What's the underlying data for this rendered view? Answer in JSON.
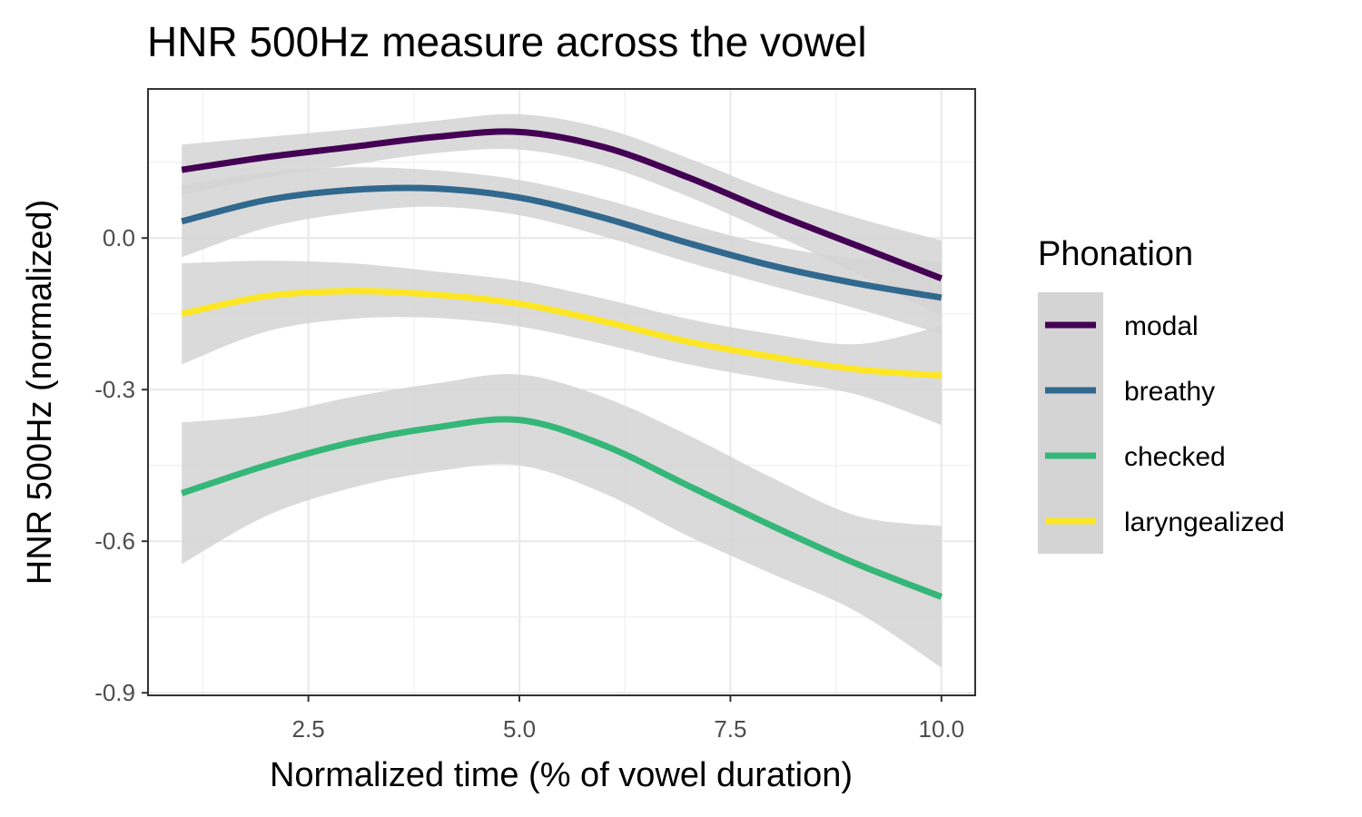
{
  "chart_data": {
    "type": "line",
    "title": "HNR 500Hz measure across the vowel",
    "xlabel": "Normalized time (% of vowel duration)",
    "ylabel": "HNR 500Hz (normalized)",
    "xlim": [
      0.6,
      10.4
    ],
    "ylim": [
      -0.905,
      0.295
    ],
    "x_ticks": [
      2.5,
      5.0,
      7.5,
      10.0
    ],
    "x_tick_labels": [
      "2.5",
      "5.0",
      "7.5",
      "10.0"
    ],
    "y_ticks": [
      0.0,
      -0.3,
      -0.6,
      -0.9
    ],
    "y_tick_labels": [
      "0.0",
      "-0.3",
      "-0.6",
      "-0.9"
    ],
    "grid": true,
    "confidence_band_color": "#d4d4d4",
    "legend": {
      "title": "Phonation",
      "position": "right"
    },
    "x": [
      1,
      2,
      3,
      4,
      5,
      6,
      7,
      8,
      9,
      10
    ],
    "series": [
      {
        "name": "modal",
        "color": "#440154",
        "values": [
          0.135,
          0.16,
          0.18,
          0.2,
          0.21,
          0.18,
          0.12,
          0.05,
          -0.015,
          -0.08
        ],
        "lower": [
          0.085,
          0.12,
          0.145,
          0.168,
          0.175,
          0.143,
          0.082,
          0.008,
          -0.07,
          -0.155
        ],
        "upper": [
          0.185,
          0.2,
          0.215,
          0.232,
          0.245,
          0.217,
          0.158,
          0.092,
          0.04,
          -0.005
        ]
      },
      {
        "name": "breathy",
        "color": "#31688e",
        "values": [
          0.033,
          0.075,
          0.095,
          0.098,
          0.08,
          0.04,
          -0.01,
          -0.055,
          -0.09,
          -0.118
        ],
        "lower": [
          -0.038,
          0.02,
          0.05,
          0.062,
          0.045,
          0.003,
          -0.048,
          -0.095,
          -0.14,
          -0.19
        ],
        "upper": [
          0.104,
          0.13,
          0.14,
          0.134,
          0.115,
          0.077,
          0.028,
          -0.015,
          -0.04,
          -0.046
        ]
      },
      {
        "name": "checked",
        "color": "#35b779",
        "values": [
          -0.505,
          -0.45,
          -0.405,
          -0.375,
          -0.36,
          -0.41,
          -0.49,
          -0.57,
          -0.645,
          -0.71
        ],
        "lower": [
          -0.645,
          -0.55,
          -0.495,
          -0.462,
          -0.45,
          -0.505,
          -0.59,
          -0.665,
          -0.74,
          -0.85
        ],
        "upper": [
          -0.365,
          -0.35,
          -0.315,
          -0.288,
          -0.27,
          -0.315,
          -0.39,
          -0.475,
          -0.55,
          -0.57
        ]
      },
      {
        "name": "laryngealized",
        "color": "#fde725",
        "values": [
          -0.15,
          -0.115,
          -0.105,
          -0.112,
          -0.13,
          -0.165,
          -0.205,
          -0.235,
          -0.26,
          -0.272
        ],
        "lower": [
          -0.25,
          -0.185,
          -0.16,
          -0.158,
          -0.175,
          -0.21,
          -0.25,
          -0.28,
          -0.31,
          -0.37
        ],
        "upper": [
          -0.05,
          -0.045,
          -0.05,
          -0.066,
          -0.085,
          -0.12,
          -0.16,
          -0.19,
          -0.21,
          -0.174
        ]
      }
    ]
  }
}
